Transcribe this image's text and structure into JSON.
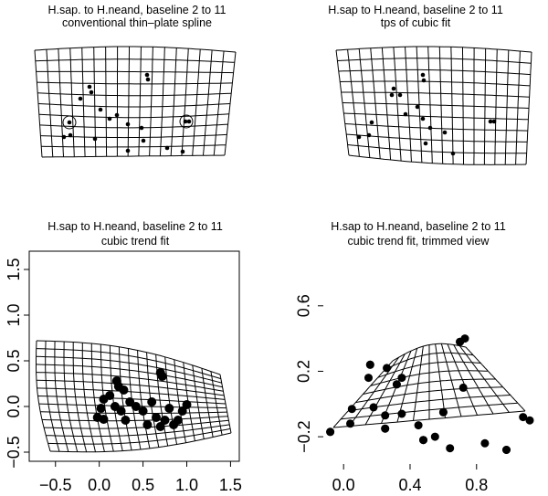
{
  "panels": [
    {
      "id": "p1",
      "title1": "H.sap. to H.neand, baseline 2  to  11",
      "title2": "conventional thin–plate spline"
    },
    {
      "id": "p2",
      "title1": "H.sap to H.neand, baseline 2  to  11",
      "title2": "tps of cubic fit"
    },
    {
      "id": "p3",
      "title1": "H.sap to H.neand, baseline 2  to  11",
      "title2": "cubic trend fit"
    },
    {
      "id": "p4",
      "title1": "H.sap to H.neand, baseline 2  to  11",
      "title2": "cubic trend fit, trimmed view"
    }
  ],
  "chart_data": [
    {
      "type": "scatter",
      "title": "H.sap. to H.neand, baseline 2  to  11\nconventional thin–plate spline",
      "axes_visible": false,
      "grid": "deformed thin-plate spline grid",
      "circled_points": 2
    },
    {
      "type": "scatter",
      "title": "H.sap to H.neand, baseline 2  to  11\ntps of cubic fit",
      "axes_visible": false,
      "grid": "deformed thin-plate spline grid"
    },
    {
      "type": "scatter",
      "title": "H.sap to H.neand, baseline 2  to  11\ncubic trend fit",
      "xlim": [
        -0.8,
        1.6
      ],
      "ylim": [
        -0.6,
        1.7
      ],
      "x_ticks": [
        "−0.5",
        "0.0",
        "0.5",
        "1.0",
        "1.5"
      ],
      "y_ticks": [
        "−0.5",
        "0.0",
        "0.5",
        "1.0",
        "1.5"
      ],
      "points": [
        [
          0.2,
          0.28
        ],
        [
          0.22,
          0.22
        ],
        [
          0.28,
          0.18
        ],
        [
          0.7,
          0.37
        ],
        [
          0.72,
          0.33
        ],
        [
          0.05,
          0.08
        ],
        [
          0.02,
          -0.02
        ],
        [
          0.12,
          0.12
        ],
        [
          0.35,
          0.05
        ],
        [
          0.42,
          0.0
        ],
        [
          0.5,
          -0.05
        ],
        [
          0.65,
          -0.12
        ],
        [
          0.75,
          -0.15
        ],
        [
          0.85,
          -0.2
        ],
        [
          0.9,
          -0.15
        ],
        [
          0.95,
          -0.05
        ],
        [
          1.0,
          0.02
        ],
        [
          0.3,
          -0.15
        ],
        [
          0.55,
          -0.2
        ],
        [
          0.7,
          -0.22
        ],
        [
          -0.02,
          -0.12
        ],
        [
          0.05,
          -0.14
        ],
        [
          0.18,
          0.0
        ],
        [
          0.25,
          -0.05
        ],
        [
          0.6,
          0.05
        ],
        [
          0.8,
          -0.02
        ]
      ]
    },
    {
      "type": "scatter",
      "title": "H.sap to H.neand, baseline 2  to  11\ncubic trend fit, trimmed view",
      "xlim": [
        -0.1,
        1.12
      ],
      "ylim": [
        -0.35,
        0.85
      ],
      "x_ticks": [
        "0.0",
        "0.4",
        "0.8"
      ],
      "y_ticks": [
        "−0.2",
        "0.2",
        "0.6"
      ],
      "points": [
        [
          0.16,
          0.24
        ],
        [
          0.15,
          0.16
        ],
        [
          0.26,
          0.22
        ],
        [
          0.32,
          0.12
        ],
        [
          0.35,
          0.16
        ],
        [
          0.04,
          -0.12
        ],
        [
          -0.08,
          -0.17
        ],
        [
          0.05,
          -0.03
        ],
        [
          0.25,
          -0.07
        ],
        [
          0.25,
          -0.15
        ],
        [
          0.35,
          -0.06
        ],
        [
          0.45,
          -0.13
        ],
        [
          0.48,
          -0.22
        ],
        [
          0.55,
          -0.2
        ],
        [
          0.64,
          -0.27
        ],
        [
          0.7,
          0.38
        ],
        [
          0.73,
          0.4
        ],
        [
          0.85,
          -0.24
        ],
        [
          0.98,
          -0.28
        ],
        [
          1.08,
          -0.08
        ],
        [
          1.12,
          -0.1
        ],
        [
          0.6,
          -0.05
        ],
        [
          0.72,
          0.1
        ],
        [
          0.18,
          -0.02
        ]
      ]
    }
  ]
}
